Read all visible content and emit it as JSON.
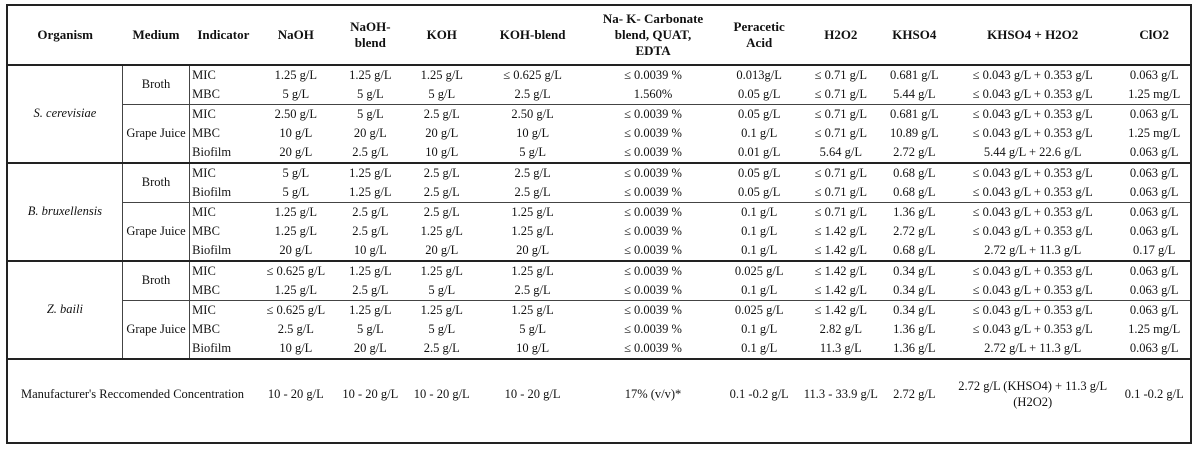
{
  "headers": [
    "Organism",
    "Medium",
    "Indicator",
    "NaOH",
    "NaOH-\nblend",
    "KOH",
    "KOH-blend",
    "Na- K- Carbonate\nblend, QUAT,\nEDTA",
    "Peracetic\nAcid",
    "H2O2",
    "KHSO4",
    "KHSO4 + H2O2",
    "ClO2"
  ],
  "organisms": [
    {
      "name": "S. cerevisiae",
      "media": [
        {
          "name": "Broth",
          "rows": [
            {
              "indicator": "MIC",
              "values": [
                "1.25 g/L",
                "1.25 g/L",
                "1.25 g/L",
                "≤ 0.625 g/L",
                "≤ 0.0039 %",
                "0.013g/L",
                "≤ 0.71 g/L",
                "0.681 g/L",
                "≤ 0.043 g/L + 0.353 g/L",
                "0.063 g/L"
              ]
            },
            {
              "indicator": "MBC",
              "values": [
                "5 g/L",
                "5 g/L",
                "5 g/L",
                "2.5 g/L",
                "1.560%",
                "0.05 g/L",
                "≤ 0.71 g/L",
                "5.44 g/L",
                "≤ 0.043 g/L + 0.353 g/L",
                "1.25 mg/L"
              ]
            }
          ]
        },
        {
          "name": "Grape Juice",
          "rows": [
            {
              "indicator": "MIC",
              "values": [
                "2.50 g/L",
                "5 g/L",
                "2.5 g/L",
                "2.50 g/L",
                "≤ 0.0039 %",
                "0.05 g/L",
                "≤ 0.71 g/L",
                "0.681 g/L",
                "≤ 0.043 g/L + 0.353 g/L",
                "0.063 g/L"
              ]
            },
            {
              "indicator": "MBC",
              "values": [
                "10 g/L",
                "20 g/L",
                "20 g/L",
                "10 g/L",
                "≤ 0.0039 %",
                "0.1 g/L",
                "≤ 0.71 g/L",
                "10.89 g/L",
                "≤ 0.043 g/L + 0.353 g/L",
                "1.25 mg/L"
              ]
            },
            {
              "indicator": "Biofilm",
              "values": [
                "20 g/L",
                "2.5 g/L",
                "10 g/L",
                "5 g/L",
                "≤ 0.0039 %",
                "0.01 g/L",
                "5.64 g/L",
                "2.72 g/L",
                "5.44 g/L + 22.6 g/L",
                "0.063 g/L"
              ]
            }
          ]
        }
      ]
    },
    {
      "name": "B. bruxellensis",
      "media": [
        {
          "name": "Broth",
          "rows": [
            {
              "indicator": "MIC",
              "values": [
                "5 g/L",
                "1.25 g/L",
                "2.5 g/L",
                "2.5 g/L",
                "≤ 0.0039 %",
                "0.05 g/L",
                "≤ 0.71 g/L",
                "0.68 g/L",
                "≤ 0.043 g/L + 0.353 g/L",
                "0.063 g/L"
              ]
            },
            {
              "indicator": "Biofilm",
              "values": [
                "5 g/L",
                "1.25 g/L",
                "2.5 g/L",
                "2.5 g/L",
                "≤ 0.0039 %",
                "0.05 g/L",
                "≤ 0.71 g/L",
                "0.68 g/L",
                "≤ 0.043 g/L + 0.353 g/L",
                "0.063 g/L"
              ]
            }
          ]
        },
        {
          "name": "Grape Juice",
          "rows": [
            {
              "indicator": "MIC",
              "values": [
                "1.25 g/L",
                "2.5 g/L",
                "2.5 g/L",
                "1.25 g/L",
                "≤ 0.0039 %",
                "0.1 g/L",
                "≤ 0.71 g/L",
                "1.36 g/L",
                "≤ 0.043 g/L + 0.353 g/L",
                "0.063 g/L"
              ]
            },
            {
              "indicator": "MBC",
              "values": [
                "1.25 g/L",
                "2.5 g/L",
                "1.25 g/L",
                "1.25 g/L",
                "≤ 0.0039 %",
                "0.1 g/L",
                "≤ 1.42 g/L",
                "2.72 g/L",
                "≤ 0.043 g/L + 0.353 g/L",
                "0.063 g/L"
              ]
            },
            {
              "indicator": "Biofilm",
              "values": [
                "20 g/L",
                "10 g/L",
                "20 g/L",
                "20 g/L",
                "≤ 0.0039 %",
                "0.1 g/L",
                "≤ 1.42 g/L",
                "0.68 g/L",
                "2.72 g/L + 11.3 g/L",
                "0.17 g/L"
              ]
            }
          ]
        }
      ]
    },
    {
      "name": "Z. baili",
      "media": [
        {
          "name": "Broth",
          "rows": [
            {
              "indicator": "MIC",
              "values": [
                "≤ 0.625 g/L",
                "1.25 g/L",
                "1.25 g/L",
                "1.25 g/L",
                "≤ 0.0039 %",
                "0.025 g/L",
                "≤ 1.42 g/L",
                "0.34 g/L",
                "≤ 0.043 g/L + 0.353 g/L",
                "0.063 g/L"
              ]
            },
            {
              "indicator": "MBC",
              "values": [
                "1.25 g/L",
                "2.5 g/L",
                "5 g/L",
                "2.5 g/L",
                "≤ 0.0039 %",
                "0.1 g/L",
                "≤ 1.42 g/L",
                "0.34 g/L",
                "≤ 0.043 g/L + 0.353 g/L",
                "0.063 g/L"
              ]
            }
          ]
        },
        {
          "name": "Grape Juice",
          "rows": [
            {
              "indicator": "MIC",
              "values": [
                "≤ 0.625 g/L",
                "1.25 g/L",
                "1.25 g/L",
                "1.25 g/L",
                "≤ 0.0039 %",
                "0.025 g/L",
                "≤ 1.42 g/L",
                "0.34 g/L",
                "≤ 0.043 g/L + 0.353 g/L",
                "0.063 g/L"
              ]
            },
            {
              "indicator": "MBC",
              "values": [
                "2.5 g/L",
                "5 g/L",
                "5 g/L",
                "5 g/L",
                "≤ 0.0039 %",
                "0.1 g/L",
                "2.82 g/L",
                "1.36 g/L",
                "≤ 0.043 g/L + 0.353 g/L",
                "1.25 mg/L"
              ]
            },
            {
              "indicator": "Biofilm",
              "values": [
                "10 g/L",
                "20 g/L",
                "2.5 g/L",
                "10 g/L",
                "≤ 0.0039 %",
                "0.1 g/L",
                "11.3 g/L",
                "1.36 g/L",
                "2.72 g/L + 11.3 g/L",
                "0.063 g/L"
              ]
            }
          ]
        }
      ]
    }
  ],
  "footer": {
    "label": "Manufacturer's Reccomended Concentration",
    "values": [
      "10 - 20 g/L",
      "10 - 20 g/L",
      "10 - 20 g/L",
      "10 - 20 g/L",
      "17% (v/v)*",
      "0.1 -0.2 g/L",
      "11.3 - 33.9 g/L",
      "2.72 g/L",
      "2.72 g/L (KHSO4) + 11.3 g/L (H2O2)",
      "0.1 -0.2 g/L"
    ]
  }
}
